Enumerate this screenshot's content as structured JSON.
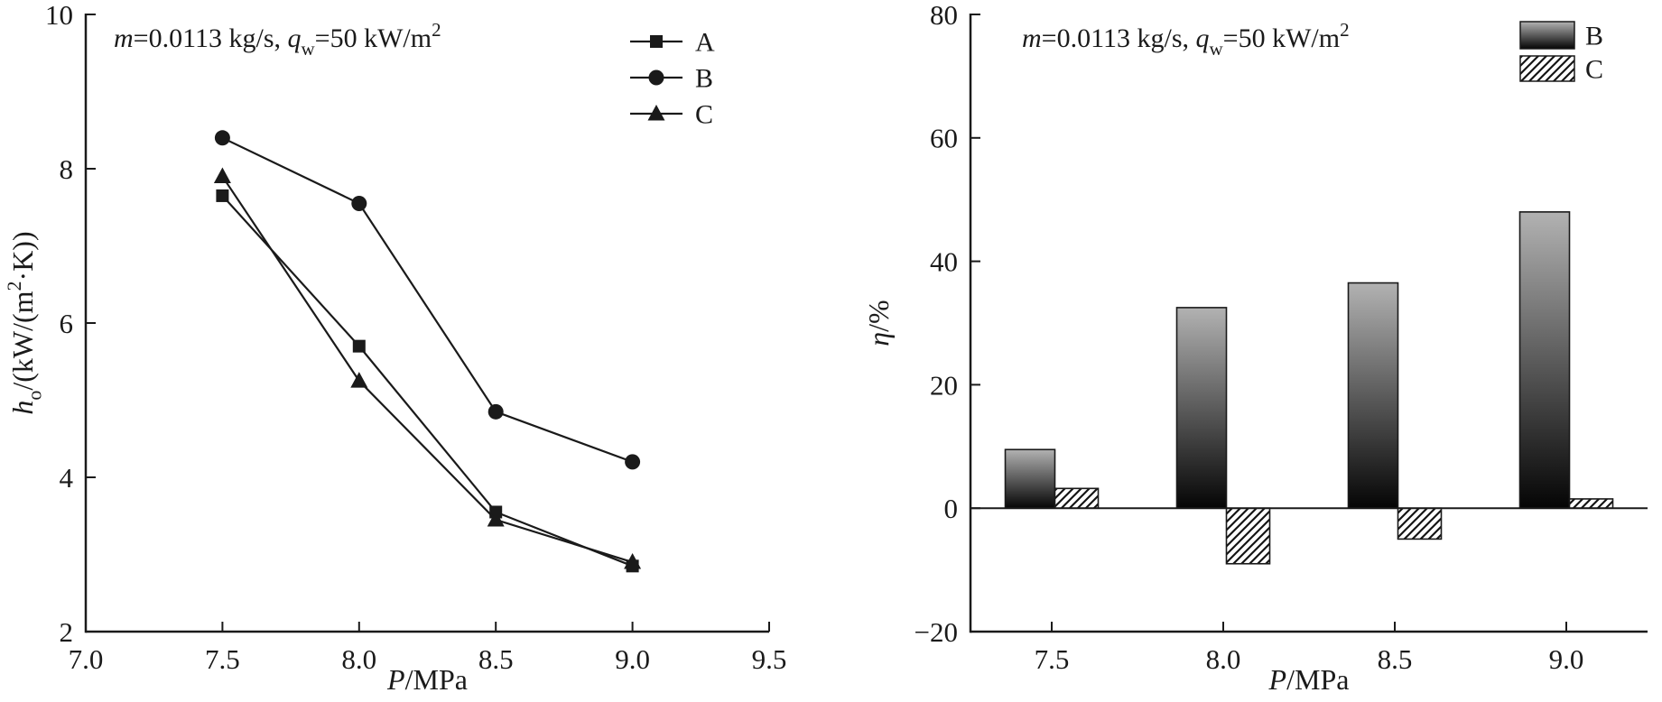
{
  "figure": {
    "background": "#ffffff",
    "ink": "#1a1a1a",
    "bar_gradient_top": "#b2b2b2",
    "bar_gradient_bottom": "#050505",
    "hatch_line_color": "#151515",
    "hatch_background": "#ffffff"
  },
  "chart_data": [
    {
      "panel": "left",
      "type": "line",
      "annotation": [
        {
          "t": "m",
          "style": "italic"
        },
        {
          "t": "=0.0113 kg/s, "
        },
        {
          "t": "q",
          "style": "italic"
        },
        {
          "t": "w",
          "style": "sub"
        },
        {
          "t": "=50 kW/m"
        },
        {
          "t": "2",
          "style": "sup"
        }
      ],
      "xlabel": [
        {
          "t": "P",
          "style": "italic"
        },
        {
          "t": "/MPa"
        }
      ],
      "ylabel": [
        {
          "t": "h",
          "style": "italic"
        },
        {
          "t": "o",
          "style": "sub"
        },
        {
          "t": "/(kW/(m"
        },
        {
          "t": "2",
          "style": "sup"
        },
        {
          "t": "·K))"
        }
      ],
      "xlim": [
        7.0,
        9.5
      ],
      "ylim": [
        2,
        10
      ],
      "xticks": [
        7.0,
        7.5,
        8.0,
        8.5,
        9.0,
        9.5
      ],
      "xtick_labels": [
        "7.0",
        "7.5",
        "8.0",
        "8.5",
        "9.0",
        "9.5"
      ],
      "yticks": [
        2,
        4,
        6,
        8,
        10
      ],
      "ytick_labels": [
        "2",
        "4",
        "6",
        "8",
        "10"
      ],
      "x": [
        7.5,
        8.0,
        8.5,
        9.0
      ],
      "series": [
        {
          "name": "A",
          "marker": "square",
          "values": [
            7.65,
            5.7,
            3.55,
            2.85
          ]
        },
        {
          "name": "B",
          "marker": "circle",
          "values": [
            8.4,
            7.55,
            4.85,
            4.2
          ]
        },
        {
          "name": "C",
          "marker": "triangle",
          "values": [
            7.9,
            5.25,
            3.45,
            2.9
          ]
        }
      ],
      "legend_position": "top-right",
      "grid": false
    },
    {
      "panel": "right",
      "type": "bar",
      "annotation": [
        {
          "t": "m",
          "style": "italic"
        },
        {
          "t": "=0.0113 kg/s, "
        },
        {
          "t": "q",
          "style": "italic"
        },
        {
          "t": "w",
          "style": "sub"
        },
        {
          "t": "=50 kW/m"
        },
        {
          "t": "2",
          "style": "sup"
        }
      ],
      "xlabel": [
        {
          "t": "P",
          "style": "italic"
        },
        {
          "t": "/MPa"
        }
      ],
      "ylabel": [
        {
          "t": "η",
          "style": "italic"
        },
        {
          "t": "/%"
        }
      ],
      "ylim": [
        -20,
        80
      ],
      "yticks": [
        -20,
        0,
        20,
        40,
        60,
        80
      ],
      "ytick_labels": [
        "−20",
        "0",
        "20",
        "40",
        "60",
        "80"
      ],
      "categories": [
        "7.5",
        "8.0",
        "8.5",
        "9.0"
      ],
      "series": [
        {
          "name": "B",
          "fill": "gradient",
          "values": [
            9.5,
            32.5,
            36.5,
            48
          ]
        },
        {
          "name": "C",
          "fill": "hatch",
          "values": [
            3.2,
            -9,
            -5,
            1.5
          ]
        }
      ],
      "legend_position": "top-right",
      "grid": false
    }
  ]
}
